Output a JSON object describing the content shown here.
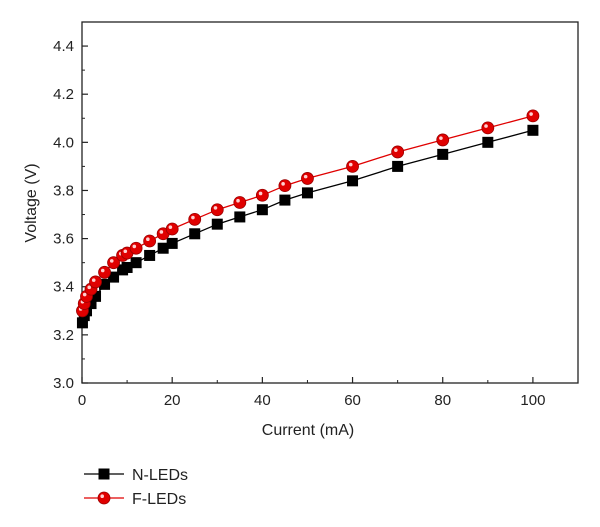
{
  "chart_data": {
    "type": "line",
    "xlabel": "Current (mA)",
    "ylabel": "Voltage (V)",
    "xlim": [
      0,
      110
    ],
    "ylim": [
      3.0,
      4.5
    ],
    "x_ticks": [
      0,
      20,
      40,
      60,
      80,
      100
    ],
    "y_ticks": [
      3.0,
      3.2,
      3.4,
      3.6,
      3.8,
      4.0,
      4.2,
      4.4
    ],
    "x_tick_labels": [
      "0",
      "20",
      "40",
      "60",
      "80",
      "100"
    ],
    "y_tick_labels": [
      "3.0",
      "3.2",
      "3.4",
      "3.6",
      "3.8",
      "4.0",
      "4.2",
      "4.4"
    ],
    "grid": false,
    "legend_position": "bottom-left-below-plot",
    "series": [
      {
        "name": "N-LEDs",
        "color": "#000000",
        "marker": "square",
        "x": [
          0.1,
          0.5,
          1,
          2,
          3,
          5,
          7,
          9,
          10,
          12,
          15,
          18,
          20,
          25,
          30,
          35,
          40,
          45,
          50,
          60,
          70,
          80,
          90,
          100
        ],
        "y": [
          3.25,
          3.28,
          3.3,
          3.33,
          3.36,
          3.41,
          3.44,
          3.47,
          3.48,
          3.5,
          3.53,
          3.56,
          3.58,
          3.62,
          3.66,
          3.69,
          3.72,
          3.76,
          3.79,
          3.84,
          3.9,
          3.95,
          4.0,
          4.05
        ]
      },
      {
        "name": "F-LEDs",
        "color": "#e00000",
        "marker": "circle",
        "x": [
          0.1,
          0.5,
          1,
          2,
          3,
          5,
          7,
          9,
          10,
          12,
          15,
          18,
          20,
          25,
          30,
          35,
          40,
          45,
          50,
          60,
          70,
          80,
          90,
          100
        ],
        "y": [
          3.3,
          3.33,
          3.36,
          3.39,
          3.42,
          3.46,
          3.5,
          3.53,
          3.54,
          3.56,
          3.59,
          3.62,
          3.64,
          3.68,
          3.72,
          3.75,
          3.78,
          3.82,
          3.85,
          3.9,
          3.96,
          4.01,
          4.06,
          4.11
        ]
      }
    ]
  }
}
